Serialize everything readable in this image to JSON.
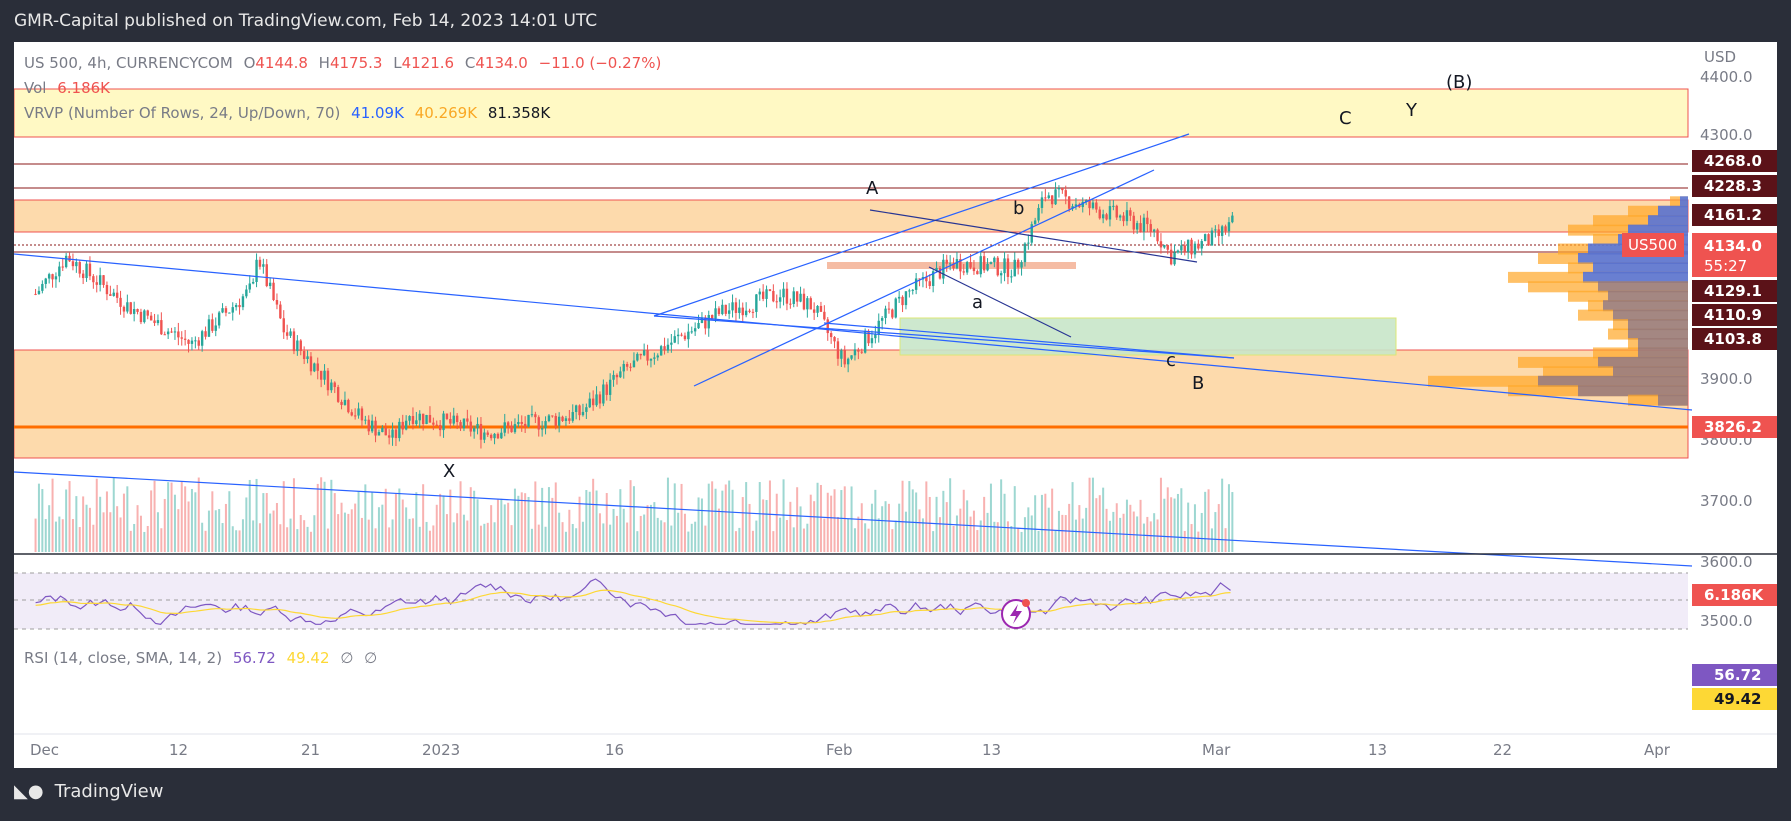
{
  "header": {
    "publisher": "GMR-Capital published on TradingView.com, Feb 14, 2023 14:01 UTC"
  },
  "legend": {
    "symbol": "US 500, 4h, CURRENCYCOM",
    "o_label": "O",
    "o": "4144.8",
    "h_label": "H",
    "h": "4175.3",
    "l_label": "L",
    "l": "4121.6",
    "c_label": "C",
    "c": "4134.0",
    "change": "−11.0 (−0.27%)",
    "vol_label": "Vol",
    "vol": "6.186K",
    "vrvp_label": "VRVP (Number Of Rows, 24, Up/Down, 70)",
    "vrvp_up": "41.09K",
    "vrvp_down": "40.269K",
    "vrvp_total": "81.358K",
    "rsi_label": "RSI (14, close, SMA, 14, 2)",
    "rsi": "56.72",
    "rsi_sma": "49.42",
    "rsi_extra1": "∅",
    "rsi_extra2": "∅"
  },
  "axis": {
    "currency": "USD",
    "price_ticks": [
      "4400.0",
      "4300.0",
      "3900.0",
      "3800.0",
      "3700.0",
      "3600.0",
      "3500.0"
    ],
    "time_ticks": [
      "Dec",
      "12",
      "21",
      "2023",
      "16",
      "Feb",
      "13",
      "Mar",
      "13",
      "22",
      "Apr"
    ]
  },
  "badges": {
    "levels": [
      "4268.0",
      "4228.3",
      "4161.2",
      "4129.1",
      "4110.9",
      "4103.8",
      "3826.2"
    ],
    "symbol_tag": "US500",
    "last_price": "4134.0",
    "countdown": "55:27",
    "volume": "6.186K",
    "rsi": "56.72",
    "rsi_sma": "49.42"
  },
  "waves": {
    "A": "A",
    "b": "b",
    "a": "a",
    "c": "c",
    "B": "B",
    "X": "X",
    "C": "C",
    "Y": "Y",
    "B_paren": "(B)"
  },
  "footer": {
    "brand": "TradingView"
  },
  "colors": {
    "up": "#26a69a",
    "down": "#ef5350",
    "trend": "#2962ff",
    "zone": "#fdd49e",
    "supply": "#fff59d",
    "demand": "#c8e6c9",
    "rsi_line": "#7e57c2",
    "rsi_sma": "#fdd835"
  },
  "chart_data": {
    "type": "candlestick",
    "symbol": "US 500",
    "timeframe": "4h",
    "ylim": [
      3480,
      4420
    ],
    "last": {
      "open": 4144.8,
      "high": 4175.3,
      "low": 4121.6,
      "close": 4134.0,
      "change": -11.0,
      "change_pct": -0.27
    },
    "close_path": [
      {
        "x": "2022-11-29",
        "y": 4020
      },
      {
        "x": "2022-12-01",
        "y": 4080
      },
      {
        "x": "2022-12-05",
        "y": 4000
      },
      {
        "x": "2022-12-09",
        "y": 3940
      },
      {
        "x": "2022-12-13",
        "y": 4030
      },
      {
        "x": "2022-12-13",
        "y": 4100
      },
      {
        "x": "2022-12-15",
        "y": 3960
      },
      {
        "x": "2022-12-20",
        "y": 3820
      },
      {
        "x": "2022-12-22",
        "y": 3790
      },
      {
        "x": "2022-12-23",
        "y": 3830
      },
      {
        "x": "2022-12-28",
        "y": 3800
      },
      {
        "x": "2023-01-03",
        "y": 3830
      },
      {
        "x": "2023-01-06",
        "y": 3900
      },
      {
        "x": "2023-01-12",
        "y": 3990
      },
      {
        "x": "2023-01-16",
        "y": 4020
      },
      {
        "x": "2023-01-18",
        "y": 4000
      },
      {
        "x": "2023-01-20",
        "y": 3910
      },
      {
        "x": "2023-01-24",
        "y": 4020
      },
      {
        "x": "2023-01-27",
        "y": 4070
      },
      {
        "x": "2023-01-31",
        "y": 4060
      },
      {
        "x": "2023-02-02",
        "y": 4180
      },
      {
        "x": "2023-02-07",
        "y": 4140
      },
      {
        "x": "2023-02-09",
        "y": 4120
      },
      {
        "x": "2023-02-10",
        "y": 4080
      },
      {
        "x": "2023-02-13",
        "y": 4110
      },
      {
        "x": "2023-02-14",
        "y": 4134
      }
    ],
    "levels": [
      4268.0,
      4228.3,
      4161.2,
      4129.1,
      4110.9,
      4103.8,
      3826.2
    ],
    "rsi": 56.72,
    "rsi_sma": 49.42
  }
}
